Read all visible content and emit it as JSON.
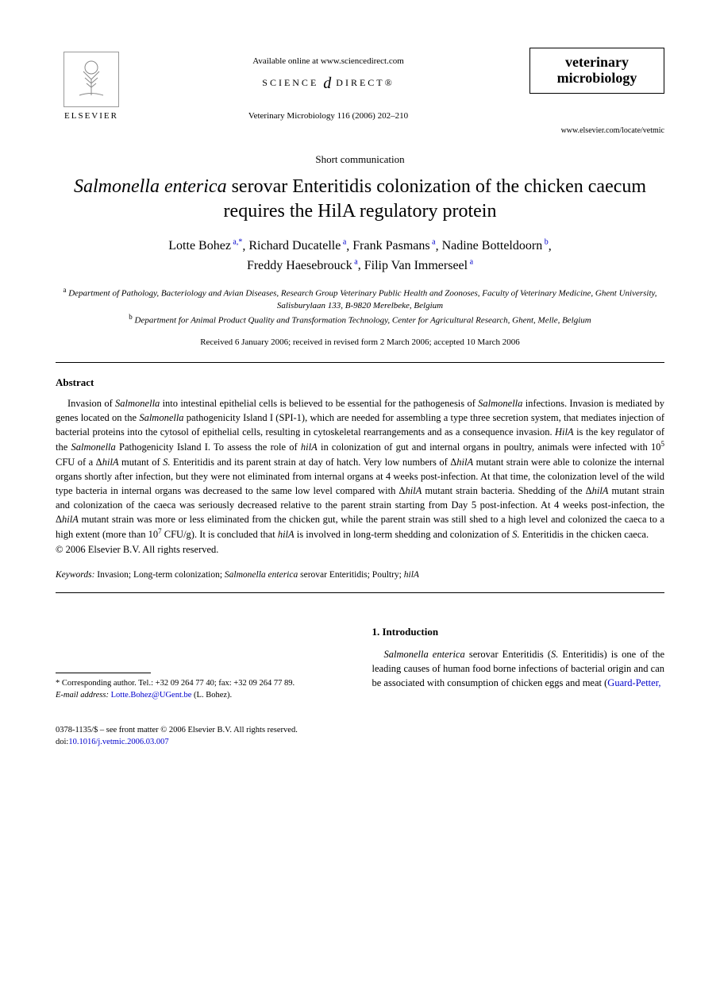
{
  "header": {
    "publisher": "ELSEVIER",
    "available_online": "Available online at www.sciencedirect.com",
    "science_direct_prefix": "SCIENCE",
    "science_direct_at": "d",
    "science_direct_suffix": "DIRECT®",
    "citation": "Veterinary Microbiology 116 (2006) 202–210",
    "journal_line1": "veterinary",
    "journal_line2": "microbiology",
    "journal_url": "www.elsevier.com/locate/vetmic"
  },
  "article": {
    "type": "Short communication",
    "title_italic": "Salmonella enterica",
    "title_rest": " serovar Enteritidis colonization of the chicken caecum requires the HilA regulatory protein",
    "authors": [
      {
        "name": "Lotte Bohez",
        "aff": "a,",
        "corr": "*"
      },
      {
        "name": "Richard Ducatelle",
        "aff": "a"
      },
      {
        "name": "Frank Pasmans",
        "aff": "a"
      },
      {
        "name": "Nadine Botteldoorn",
        "aff": "b"
      },
      {
        "name": "Freddy Haesebrouck",
        "aff": "a"
      },
      {
        "name": "Filip Van Immerseel",
        "aff": "a"
      }
    ],
    "affiliations": {
      "a": "Department of Pathology, Bacteriology and Avian Diseases, Research Group Veterinary Public Health and Zoonoses, Faculty of Veterinary Medicine, Ghent University, Salisburylaan 133, B-9820 Merelbeke, Belgium",
      "b": "Department for Animal Product Quality and Transformation Technology, Center for Agricultural Research, Ghent, Melle, Belgium"
    },
    "dates": "Received 6 January 2006; received in revised form 2 March 2006; accepted 10 March 2006"
  },
  "abstract": {
    "heading": "Abstract",
    "text_parts": [
      {
        "t": "Invasion of ",
        "i": false
      },
      {
        "t": "Salmonella",
        "i": true
      },
      {
        "t": " into intestinal epithelial cells is believed to be essential for the pathogenesis of ",
        "i": false
      },
      {
        "t": "Salmonella",
        "i": true
      },
      {
        "t": " infections. Invasion is mediated by genes located on the ",
        "i": false
      },
      {
        "t": "Salmonella",
        "i": true
      },
      {
        "t": " pathogenicity Island I (SPI-1), which are needed for assembling a type three secretion system, that mediates injection of bacterial proteins into the cytosol of epithelial cells, resulting in cytoskeletal rearrangements and as a consequence invasion. ",
        "i": false
      },
      {
        "t": "HilA",
        "i": true
      },
      {
        "t": " is the key regulator of the ",
        "i": false
      },
      {
        "t": "Salmonella",
        "i": true
      },
      {
        "t": " Pathogenicity Island I. To assess the role of ",
        "i": false
      },
      {
        "t": "hilA",
        "i": true
      },
      {
        "t": " in colonization of gut and internal organs in poultry, animals were infected with 10",
        "i": false
      },
      {
        "t": "5",
        "sup": true
      },
      {
        "t": " CFU of a Δ",
        "i": false
      },
      {
        "t": "hilA",
        "i": true
      },
      {
        "t": " mutant of ",
        "i": false
      },
      {
        "t": "S.",
        "i": true
      },
      {
        "t": " Enteritidis and its parent strain at day of hatch. Very low numbers of Δ",
        "i": false
      },
      {
        "t": "hilA",
        "i": true
      },
      {
        "t": " mutant strain were able to colonize the internal organs shortly after infection, but they were not eliminated from internal organs at 4 weeks post-infection. At that time, the colonization level of the wild type bacteria in internal organs was decreased to the same low level compared with Δ",
        "i": false
      },
      {
        "t": "hilA",
        "i": true
      },
      {
        "t": " mutant strain bacteria. Shedding of the Δ",
        "i": false
      },
      {
        "t": "hilA",
        "i": true
      },
      {
        "t": " mutant strain and colonization of the caeca was seriously decreased relative to the parent strain starting from Day 5 post-infection. At 4 weeks post-infection, the Δ",
        "i": false
      },
      {
        "t": "hilA",
        "i": true
      },
      {
        "t": " mutant strain was more or less eliminated from the chicken gut, while the parent strain was still shed to a high level and colonized the caeca to a high extent (more than 10",
        "i": false
      },
      {
        "t": "7",
        "sup": true
      },
      {
        "t": " CFU/g). It is concluded that ",
        "i": false
      },
      {
        "t": "hilA",
        "i": true
      },
      {
        "t": " is involved in long-term shedding and colonization of ",
        "i": false
      },
      {
        "t": "S.",
        "i": true
      },
      {
        "t": " Enteritidis in the chicken caeca.",
        "i": false
      }
    ],
    "copyright": "© 2006 Elsevier B.V. All rights reserved."
  },
  "keywords": {
    "label": "Keywords:",
    "text": "Invasion; Long-term colonization; ",
    "italic1": "Salmonella enterica",
    "text2": " serovar Enteritidis; Poultry; ",
    "italic2": "hilA"
  },
  "footnotes": {
    "corr": "* Corresponding author. Tel.: +32 09 264 77 40; fax: +32 09 264 77 89.",
    "email_label": "E-mail address:",
    "email": "Lotte.Bohez@UGent.be",
    "email_paren": "(L. Bohez)."
  },
  "intro": {
    "heading": "1. Introduction",
    "text_parts": [
      {
        "t": "Salmonella enterica",
        "i": true
      },
      {
        "t": " serovar Enteritidis (",
        "i": false
      },
      {
        "t": "S.",
        "i": true
      },
      {
        "t": " Enteritidis) is one of the leading causes of human food borne infections of bacterial origin and can be associated with consumption of chicken eggs and meat (",
        "i": false
      },
      {
        "t": "Guard-Petter,",
        "link": true
      }
    ]
  },
  "bottom": {
    "issn": "0378-1135/$ – see front matter © 2006 Elsevier B.V. All rights reserved.",
    "doi_label": "doi:",
    "doi": "10.1016/j.vetmic.2006.03.007"
  }
}
